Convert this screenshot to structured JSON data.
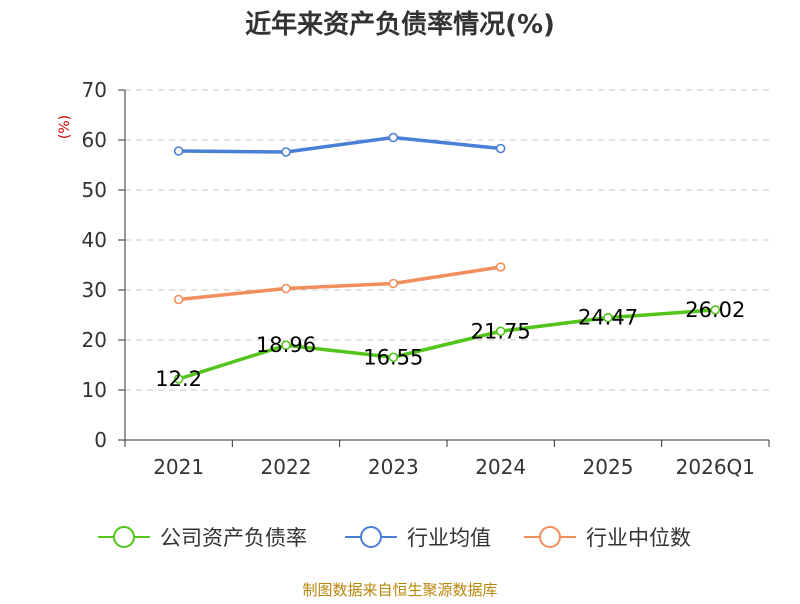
{
  "source": "制图数据来自恒生聚源数据库",
  "chart_data": {
    "type": "line",
    "title": "近年来资产负债率情况(%)",
    "ylabel": "(%)",
    "xlabel": "",
    "categories": [
      "2021",
      "2022",
      "2023",
      "2024",
      "2025",
      "2026Q1"
    ],
    "ylim": [
      0,
      70
    ],
    "yticks": [
      "0",
      "10",
      "20",
      "30",
      "40",
      "50",
      "60",
      "70"
    ],
    "grid": true,
    "legend_position": "bottom",
    "series": [
      {
        "name": "公司资产负债率",
        "color": "#52c41a",
        "values": [
          12.2,
          18.96,
          16.55,
          21.75,
          24.47,
          26.02
        ],
        "labels": [
          "12.2",
          "18.96",
          "16.55",
          "21.75",
          "24.47",
          "26.02"
        ]
      },
      {
        "name": "行业均值",
        "color": "#4a7fd6",
        "values": [
          57.8,
          57.6,
          60.5,
          58.3,
          null,
          null
        ]
      },
      {
        "name": "行业中位数",
        "color": "#f28e5b",
        "values": [
          28.1,
          30.3,
          31.3,
          34.6,
          null,
          null
        ]
      }
    ]
  }
}
